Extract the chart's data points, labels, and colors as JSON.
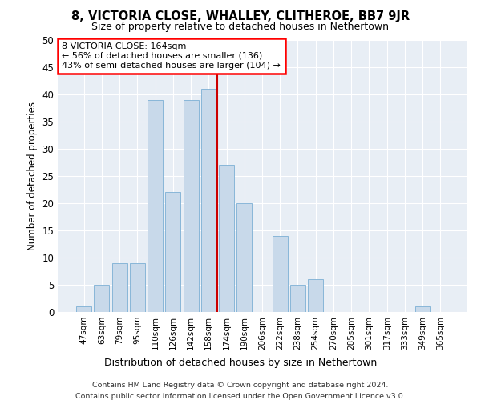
{
  "title": "8, VICTORIA CLOSE, WHALLEY, CLITHEROE, BB7 9JR",
  "subtitle": "Size of property relative to detached houses in Nethertown",
  "xlabel": "Distribution of detached houses by size in Nethertown",
  "ylabel": "Number of detached properties",
  "bar_color": "#c8d9ea",
  "bar_edge_color": "#7bafd4",
  "background_color": "#e8eef5",
  "categories": [
    "47sqm",
    "63sqm",
    "79sqm",
    "95sqm",
    "110sqm",
    "126sqm",
    "142sqm",
    "158sqm",
    "174sqm",
    "190sqm",
    "206sqm",
    "222sqm",
    "238sqm",
    "254sqm",
    "270sqm",
    "285sqm",
    "301sqm",
    "317sqm",
    "333sqm",
    "349sqm",
    "365sqm"
  ],
  "values": [
    1,
    5,
    9,
    9,
    39,
    22,
    39,
    41,
    27,
    20,
    0,
    14,
    5,
    6,
    0,
    0,
    0,
    0,
    0,
    1,
    0
  ],
  "ylim": [
    0,
    50
  ],
  "yticks": [
    0,
    5,
    10,
    15,
    20,
    25,
    30,
    35,
    40,
    45,
    50
  ],
  "property_line_x": 7.5,
  "annotation_line1": "8 VICTORIA CLOSE: 164sqm",
  "annotation_line2": "← 56% of detached houses are smaller (136)",
  "annotation_line3": "43% of semi-detached houses are larger (104) →",
  "vline_color": "#cc0000",
  "footer1": "Contains HM Land Registry data © Crown copyright and database right 2024.",
  "footer2": "Contains public sector information licensed under the Open Government Licence v3.0."
}
